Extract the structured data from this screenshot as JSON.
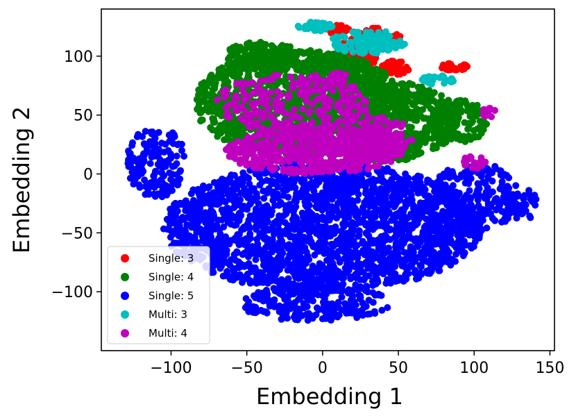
{
  "chart_data": {
    "type": "scatter",
    "title": "",
    "xlabel": "Embedding 1",
    "ylabel": "Embedding 2",
    "xlim": [
      -146,
      153
    ],
    "ylim": [
      -150,
      140
    ],
    "xticks": [
      -100,
      -50,
      0,
      50,
      100,
      150
    ],
    "yticks": [
      -100,
      -50,
      0,
      50,
      100
    ],
    "xtick_labels": [
      "−100",
      "−50",
      "0",
      "50",
      "100",
      "150"
    ],
    "ytick_labels": [
      "−100",
      "−50",
      "0",
      "50",
      "100"
    ],
    "grid": false,
    "legend_position": "lower-left",
    "series": [
      {
        "name": "Single: 3",
        "color": "#ff0000",
        "regions": [
          {
            "cx": 22,
            "cy": 100,
            "rx": 15,
            "ry": 14,
            "n": 120
          },
          {
            "cx": 48,
            "cy": 90,
            "rx": 10,
            "ry": 6,
            "n": 60
          },
          {
            "cx": 35,
            "cy": 117,
            "rx": 18,
            "ry": 8,
            "n": 70
          },
          {
            "cx": 87,
            "cy": 91,
            "rx": 10,
            "ry": 3,
            "n": 25
          },
          {
            "cx": 10,
            "cy": 123,
            "rx": 8,
            "ry": 4,
            "n": 20
          }
        ]
      },
      {
        "name": "Single: 4",
        "color": "#008000",
        "regions": [
          {
            "cx": -15,
            "cy": 60,
            "rx": 70,
            "ry": 45,
            "n": 1200
          },
          {
            "cx": 40,
            "cy": 45,
            "rx": 50,
            "ry": 35,
            "n": 600
          },
          {
            "cx": -40,
            "cy": 100,
            "rx": 25,
            "ry": 12,
            "n": 120
          },
          {
            "cx": 90,
            "cy": 45,
            "rx": 20,
            "ry": 18,
            "n": 120
          },
          {
            "cx": 10,
            "cy": 85,
            "rx": 20,
            "ry": 15,
            "n": 100
          }
        ]
      },
      {
        "name": "Single: 5",
        "color": "#0000ff",
        "regions": [
          {
            "cx": 0,
            "cy": -45,
            "rx": 105,
            "ry": 55,
            "n": 2200
          },
          {
            "cx": -110,
            "cy": 10,
            "rx": 20,
            "ry": 30,
            "n": 160
          },
          {
            "cx": 100,
            "cy": -20,
            "rx": 30,
            "ry": 30,
            "n": 220
          },
          {
            "cx": -5,
            "cy": -110,
            "rx": 50,
            "ry": 15,
            "n": 220
          },
          {
            "cx": 130,
            "cy": -25,
            "rx": 12,
            "ry": 15,
            "n": 40
          }
        ]
      },
      {
        "name": "Multi: 3",
        "color": "#00bfbf",
        "regions": [
          {
            "cx": 30,
            "cy": 112,
            "rx": 25,
            "ry": 10,
            "n": 120
          },
          {
            "cx": -5,
            "cy": 125,
            "rx": 12,
            "ry": 4,
            "n": 30
          },
          {
            "cx": 75,
            "cy": 80,
            "rx": 12,
            "ry": 4,
            "n": 30
          }
        ]
      },
      {
        "name": "Multi: 4",
        "color": "#bf00bf",
        "regions": [
          {
            "cx": -5,
            "cy": 20,
            "rx": 60,
            "ry": 20,
            "n": 500
          },
          {
            "cx": -20,
            "cy": 60,
            "rx": 50,
            "ry": 25,
            "n": 250
          },
          {
            "cx": 30,
            "cy": 30,
            "rx": 30,
            "ry": 20,
            "n": 150
          },
          {
            "cx": 100,
            "cy": 10,
            "rx": 8,
            "ry": 6,
            "n": 20
          },
          {
            "cx": 110,
            "cy": 52,
            "rx": 5,
            "ry": 4,
            "n": 15
          },
          {
            "cx": 10,
            "cy": 80,
            "rx": 8,
            "ry": 6,
            "n": 30
          }
        ]
      }
    ]
  }
}
